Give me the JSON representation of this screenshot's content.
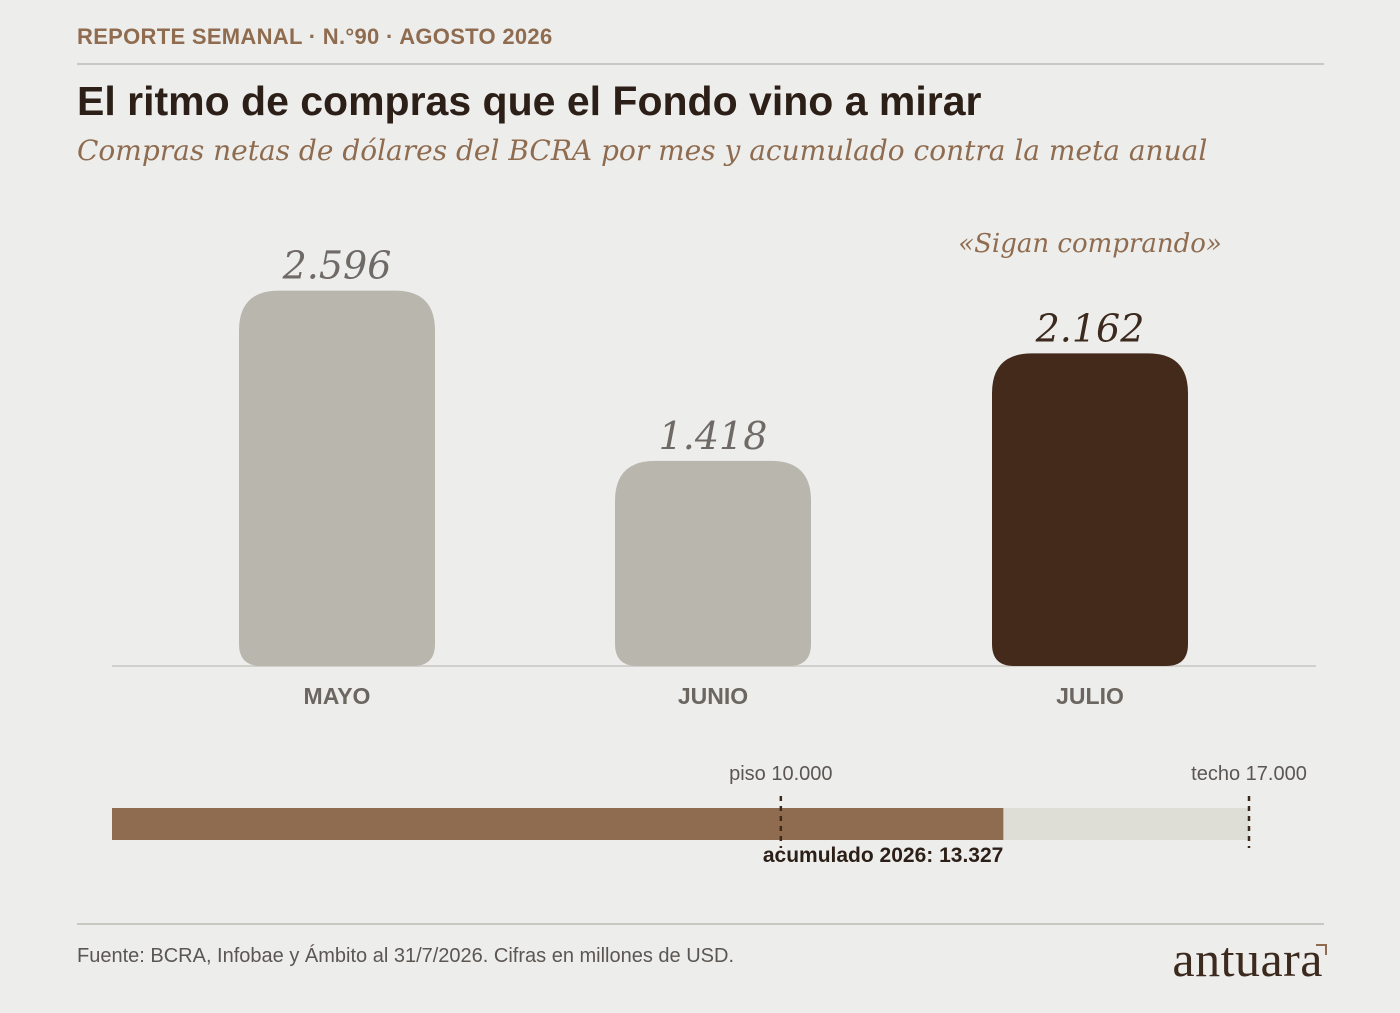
{
  "header": {
    "kicker": "REPORTE SEMANAL · N.°90 · AGOSTO 2026",
    "title": "El ritmo de compras que el Fondo vino a mirar",
    "subtitle": "Compras netas de dólares del BCRA por mes y acumulado contra la meta anual"
  },
  "chart_data": [
    {
      "type": "bar",
      "categories": [
        "MAYO",
        "JUNIO",
        "JULIO"
      ],
      "values": [
        2596,
        1418,
        2162
      ],
      "value_labels": [
        "2.596",
        "1.418",
        "2.162"
      ],
      "ylim": [
        0,
        2600
      ],
      "highlight": "JULIO",
      "annotation": "«Sigan comprando»",
      "colors": {
        "default": "#b9b6ae",
        "highlight": "#432a1b"
      },
      "grid": false
    },
    {
      "type": "bar",
      "orientation": "horizontal",
      "value": 13327,
      "value_label": "acumulado 2026: 13.327",
      "range": [
        0,
        17000
      ],
      "markers": [
        {
          "value": 10000,
          "label": "piso 10.000"
        },
        {
          "value": 17000,
          "label": "techo 17.000"
        }
      ],
      "colors": {
        "fill": "#8f6c4f",
        "track": "#deddd6"
      }
    }
  ],
  "footer": {
    "source": "Fuente: BCRA, Infobae y Ámbito al 31/7/2026. Cifras en millones de USD.",
    "logo": "antuara"
  }
}
